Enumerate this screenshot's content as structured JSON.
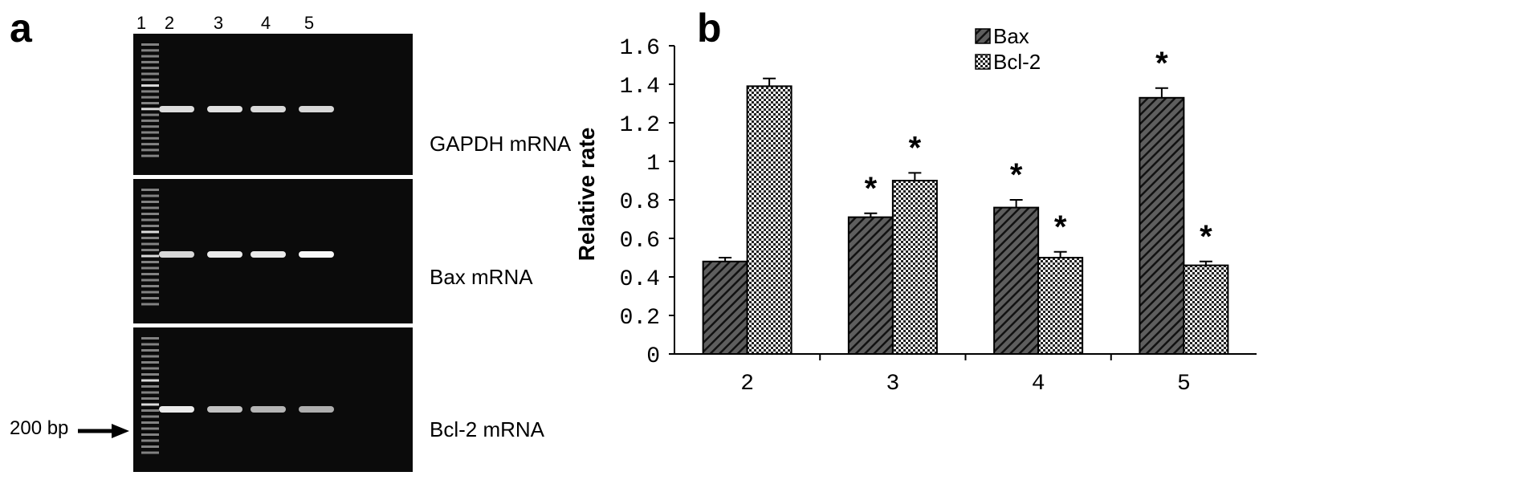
{
  "panel_a": {
    "letter": "a",
    "lanes": [
      "1",
      "2",
      "3",
      "4",
      "5"
    ],
    "gels": [
      {
        "label": "GAPDH mRNA",
        "band_intensity": [
          0.75,
          0.78,
          0.72,
          0.7
        ]
      },
      {
        "label": "Bax mRNA",
        "band_intensity": [
          0.7,
          0.85,
          0.85,
          0.95
        ]
      },
      {
        "label": "Bcl-2 mRNA",
        "band_intensity": [
          0.85,
          0.55,
          0.45,
          0.4
        ]
      }
    ],
    "marker_label": "200 bp"
  },
  "panel_b": {
    "letter": "b"
  },
  "chart_data": {
    "type": "bar",
    "categories": [
      "2",
      "3",
      "4",
      "5"
    ],
    "series": [
      {
        "name": "Bax",
        "values": [
          0.48,
          0.71,
          0.76,
          1.33
        ],
        "errors": [
          0.02,
          0.02,
          0.04,
          0.05
        ],
        "significant": [
          false,
          true,
          true,
          true
        ]
      },
      {
        "name": "Bcl-2",
        "values": [
          1.39,
          0.9,
          0.5,
          0.46
        ],
        "errors": [
          0.04,
          0.04,
          0.03,
          0.02
        ],
        "significant": [
          false,
          true,
          true,
          true
        ]
      }
    ],
    "ylabel": "Relative rate",
    "ylim": [
      0,
      1.6
    ],
    "yticks": [
      "0",
      "0.2",
      "0.4",
      "0.6",
      "0.8",
      "1",
      "1.2",
      "1.4",
      "1.6"
    ],
    "significance_marker": "*",
    "legend_position": "top-right",
    "grid": false
  }
}
